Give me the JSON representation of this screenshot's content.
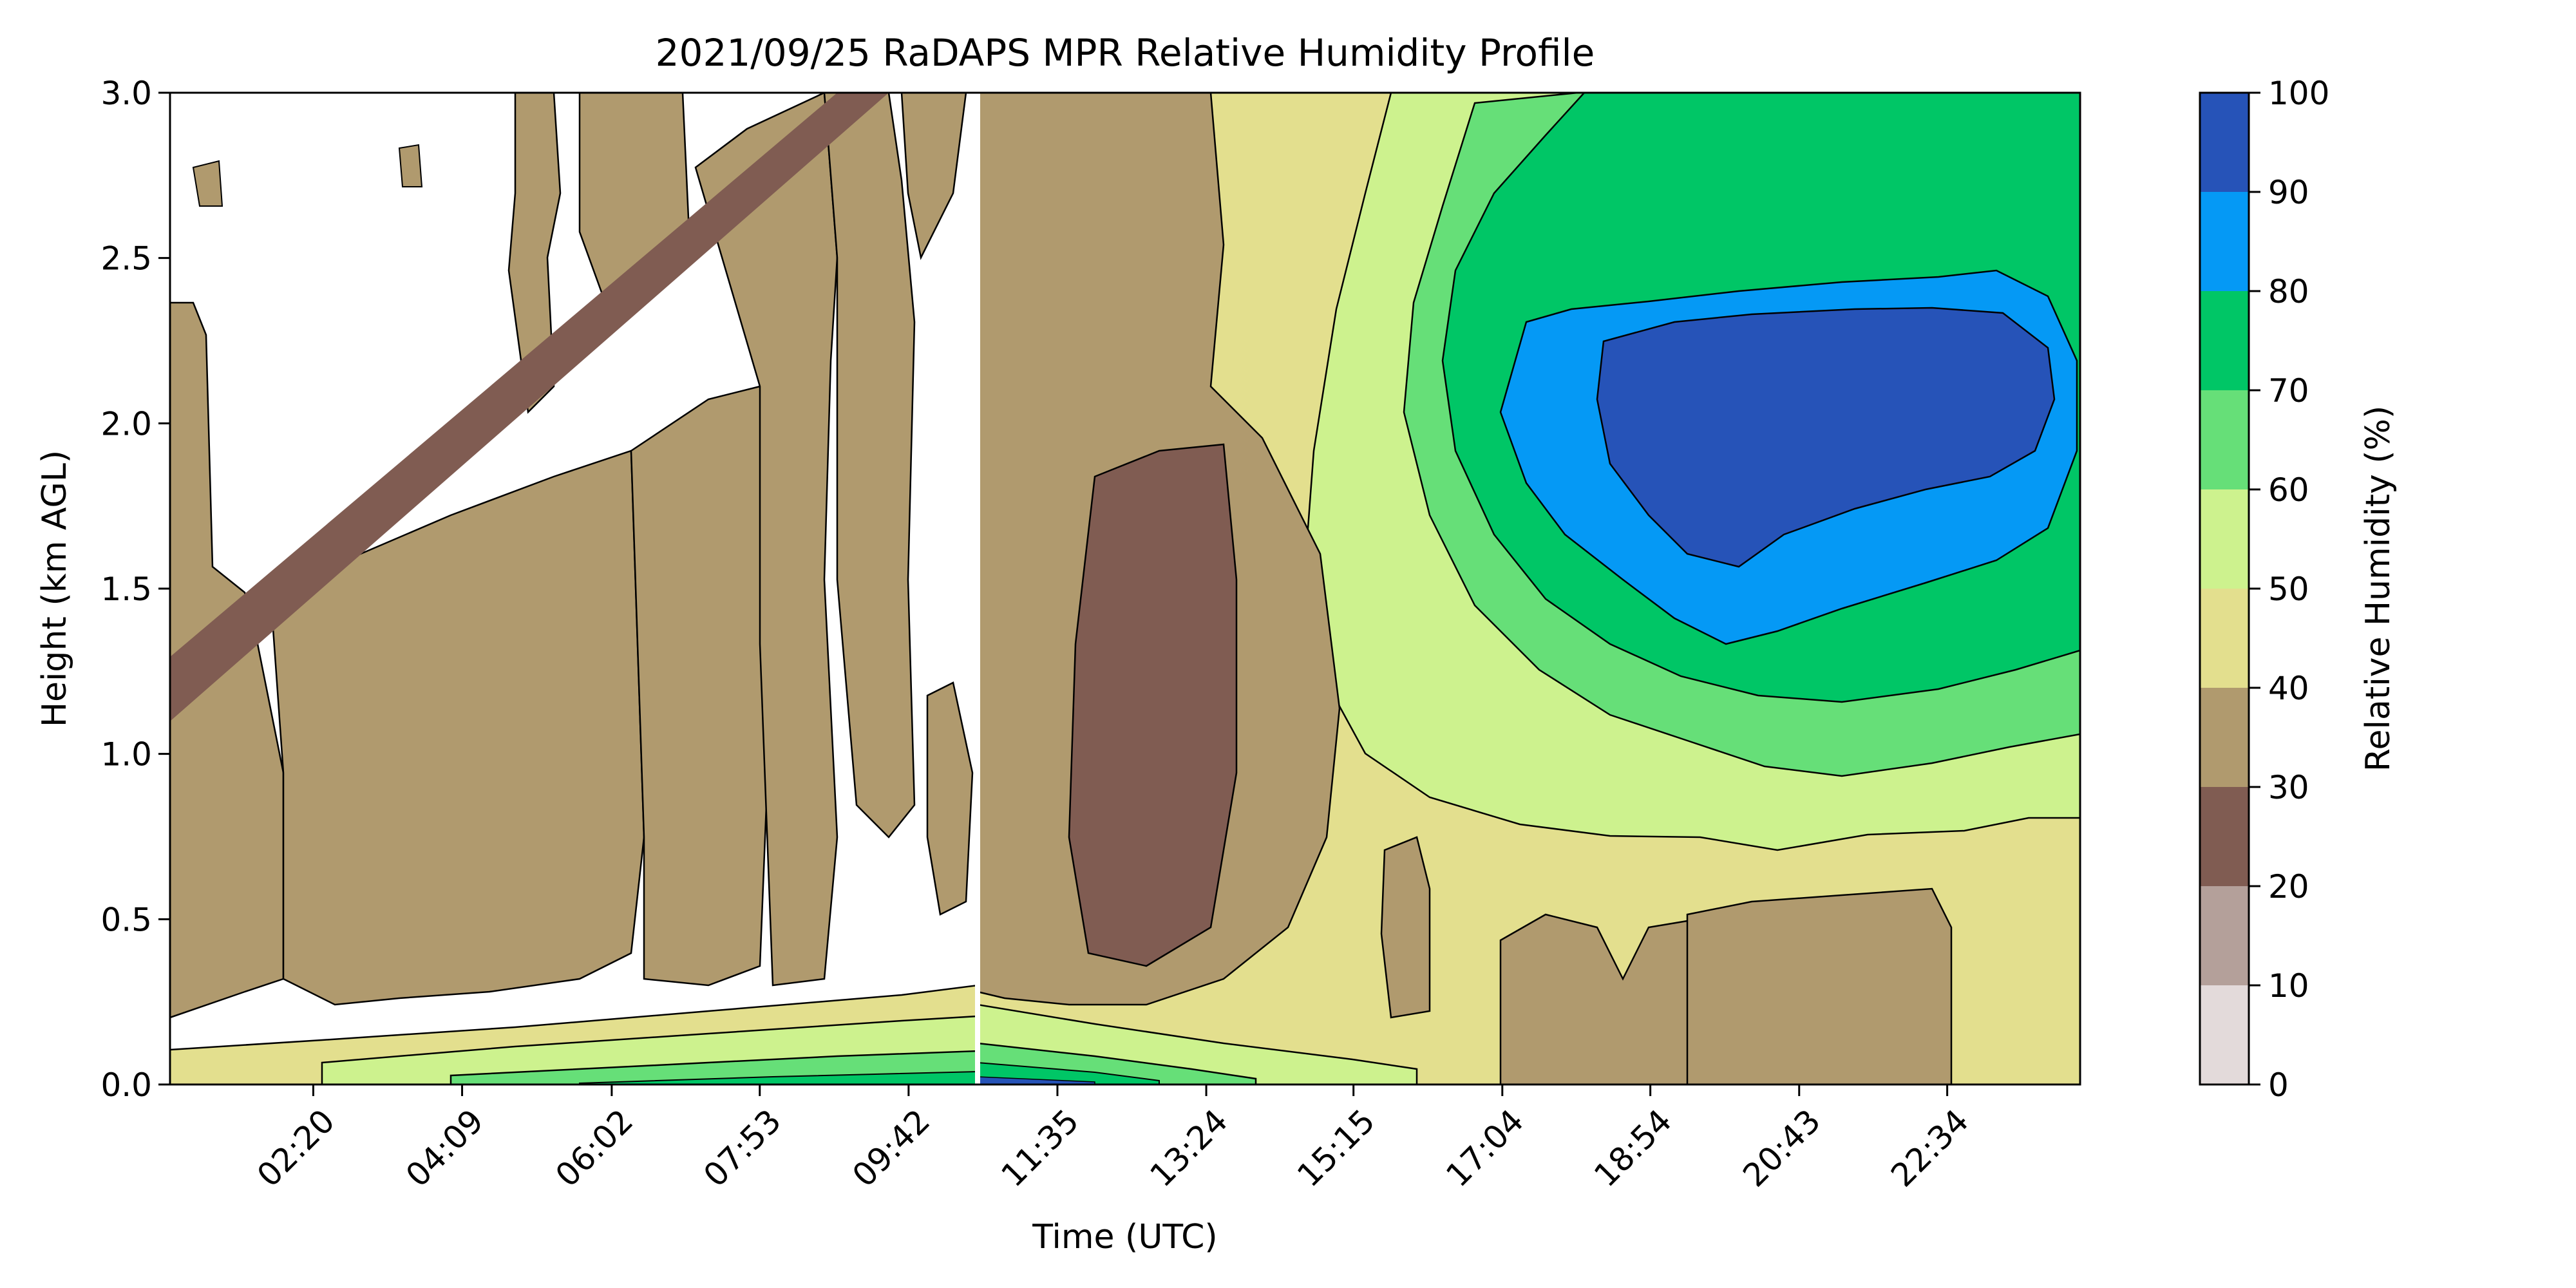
{
  "chart_data": {
    "type": "heatmap",
    "title": "2021/09/25 RaDAPS MPR Relative Humidity Profile",
    "xlabel": "Time (UTC)",
    "ylabel": "Height (km AGL)",
    "x_range_hours": [
      0,
      24
    ],
    "ylim": [
      0,
      3.0
    ],
    "x_ticks": [
      {
        "label": "02:20",
        "hour": 1.8
      },
      {
        "label": "04:09",
        "hour": 3.67
      },
      {
        "label": "06:02",
        "hour": 5.55
      },
      {
        "label": "07:53",
        "hour": 7.41
      },
      {
        "label": "09:42",
        "hour": 9.28
      },
      {
        "label": "11:35",
        "hour": 11.15
      },
      {
        "label": "13:24",
        "hour": 13.02
      },
      {
        "label": "15:15",
        "hour": 14.87
      },
      {
        "label": "17:04",
        "hour": 16.74
      },
      {
        "label": "18:54",
        "hour": 18.6
      },
      {
        "label": "20:43",
        "hour": 20.47
      },
      {
        "label": "22:34",
        "hour": 22.33
      }
    ],
    "y_ticks": [
      0.0,
      0.5,
      1.0,
      1.5,
      2.0,
      2.5,
      3.0
    ],
    "y_tick_labels": [
      "0.0",
      "0.5",
      "1.0",
      "1.5",
      "2.0",
      "2.5",
      "3.0"
    ],
    "colorbar": {
      "label": "Relative Humidity (%)",
      "range": [
        0,
        100
      ],
      "ticks": [
        "0",
        "10",
        "20",
        "30",
        "40",
        "50",
        "60",
        "70",
        "80",
        "90",
        "100"
      ],
      "levels": [
        {
          "from": 0,
          "to": 10,
          "color": "#e3dada"
        },
        {
          "from": 10,
          "to": 20,
          "color": "#b4a09a"
        },
        {
          "from": 20,
          "to": 30,
          "color": "#805c52"
        },
        {
          "from": 30,
          "to": 40,
          "color": "#b09a6e"
        },
        {
          "from": 40,
          "to": 50,
          "color": "#e3df8e"
        },
        {
          "from": 50,
          "to": 60,
          "color": "#cdf28e"
        },
        {
          "from": 60,
          "to": 70,
          "color": "#66df78"
        },
        {
          "from": 70,
          "to": 80,
          "color": "#00c666"
        },
        {
          "from": 80,
          "to": 90,
          "color": "#0599f5"
        },
        {
          "from": 90,
          "to": 100,
          "color": "#2653b8"
        }
      ]
    },
    "grid": false,
    "background_below_lowest_level": "#ffffff"
  }
}
